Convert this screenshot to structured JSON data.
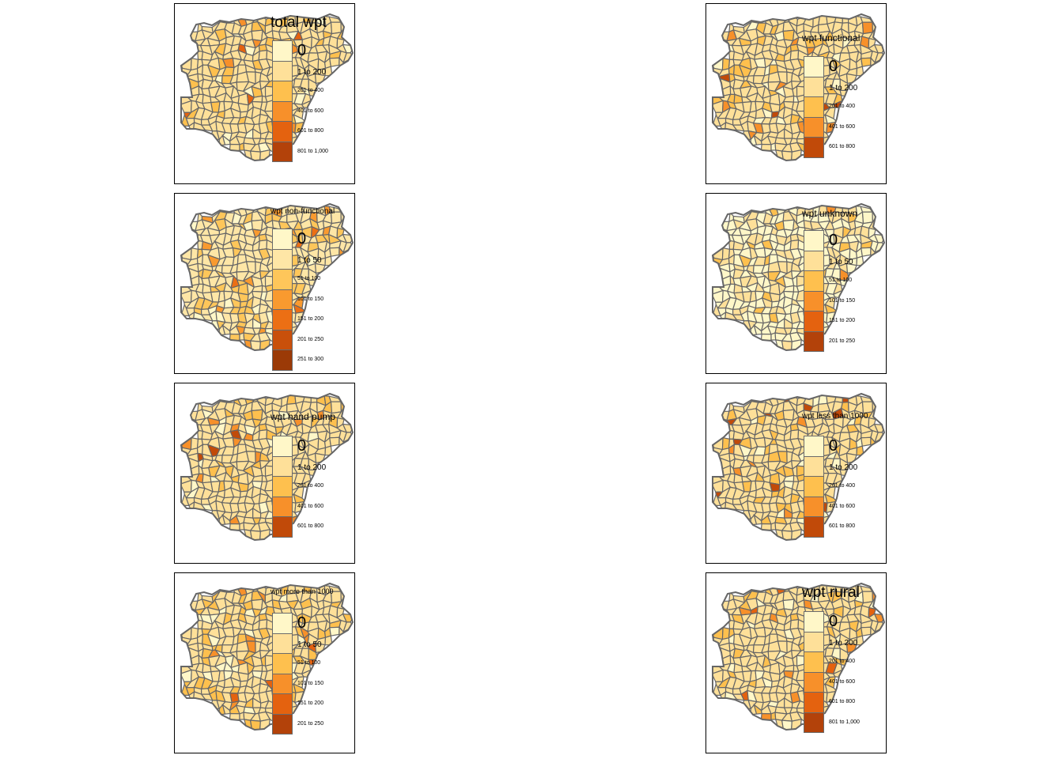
{
  "panels": [
    {
      "id": "total-wpt",
      "title": "total wpt",
      "legend": [
        "0",
        "1 to 200",
        "201 to 400",
        "401 to 600",
        "601 to 800",
        "801 to 1,000"
      ],
      "colors": [
        "#fff7c8",
        "#fee099",
        "#fec04e",
        "#f7902a",
        "#e4620f",
        "#b3420a"
      ]
    },
    {
      "id": "wpt-functional",
      "title": "wpt functional",
      "legend": [
        "0",
        "1 to 200",
        "201 to 400",
        "401 to 600",
        "601 to 800"
      ],
      "colors": [
        "#fff7c8",
        "#fee099",
        "#fec04e",
        "#f7902a",
        "#c14a09"
      ]
    },
    {
      "id": "wpt-non-functional",
      "title": "wpt non-functional",
      "legend": [
        "0",
        "1 to 50",
        "51 to 100",
        "101 to 150",
        "151 to 200",
        "201 to 250",
        "251 to 300"
      ],
      "colors": [
        "#fff7c8",
        "#fee6a6",
        "#fec65a",
        "#f99a2f",
        "#ec6f14",
        "#c9500b",
        "#9b3a07"
      ]
    },
    {
      "id": "wpt-unknown",
      "title": "wpt unknown",
      "legend": [
        "0",
        "1 to 50",
        "51 to 100",
        "101 to 150",
        "151 to 200",
        "201 to 250"
      ],
      "colors": [
        "#fff7c8",
        "#fee099",
        "#fec04e",
        "#f7902a",
        "#e4620f",
        "#b3420a"
      ]
    },
    {
      "id": "wpt-hand-pump",
      "title": "wpt hand pump",
      "legend": [
        "0",
        "1 to 200",
        "201 to 400",
        "401 to 600",
        "601 to 800"
      ],
      "colors": [
        "#fff7c8",
        "#fee099",
        "#fec04e",
        "#f7902a",
        "#c14a09"
      ]
    },
    {
      "id": "wpt-less-than-1000",
      "title": "wpt less than 1000",
      "legend": [
        "0",
        "1 to 200",
        "201 to 400",
        "401 to 600",
        "601 to 800"
      ],
      "colors": [
        "#fff7c8",
        "#fee099",
        "#fec04e",
        "#f7902a",
        "#c14a09"
      ]
    },
    {
      "id": "wpt-more-than-1000",
      "title": "wpt more than 1000",
      "legend": [
        "0",
        "1 to 50",
        "51 to 100",
        "101 to 150",
        "151 to 200",
        "201 to 250"
      ],
      "colors": [
        "#fff7c8",
        "#fee099",
        "#fec04e",
        "#f7902a",
        "#e4620f",
        "#b3420a"
      ]
    },
    {
      "id": "wpt-rural",
      "title": "wpt rural",
      "legend": [
        "0",
        "1 to 200",
        "201 to 400",
        "401 to 600",
        "601 to 800",
        "801 to 1,000"
      ],
      "colors": [
        "#fff7c8",
        "#fee099",
        "#fec04e",
        "#f7902a",
        "#e4620f",
        "#b3420a"
      ]
    }
  ],
  "map_style": {
    "border_color": "#666666",
    "base_fill": "#fee099"
  }
}
